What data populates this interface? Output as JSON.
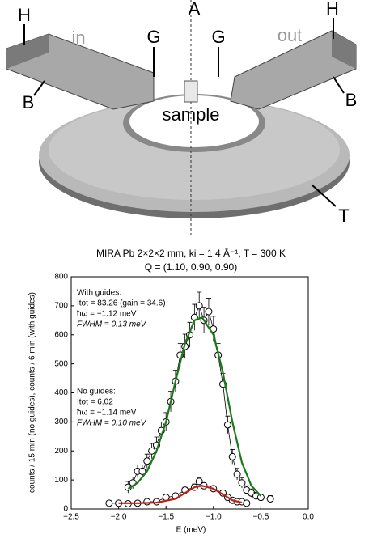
{
  "photo_labels": [
    "A",
    "H",
    "in",
    "G",
    "G",
    "out",
    "H",
    "B",
    "B",
    "sample",
    "T"
  ],
  "chart_data": {
    "type": "scatter",
    "title": "MIRA Pb 2×2×2 mm, ki = 1.4 Å⁻¹, T = 300 K",
    "subtitle": "Q = (1.10, 0.90, 0.90)",
    "x_label": "E (meV)",
    "y_label": "counts / 15 min (no guides), counts / 6 min (with guides)",
    "annotations": [
      "With guides:",
      "Itot = 83.26 (gain = 34.6)",
      "ħω = −1.12 meV",
      "FWHM = 0.13 meV",
      "No guides:",
      "Itot = 6.02",
      "ħω = −1.14 meV",
      "FWHM = 0.10 meV"
    ],
    "xlim": [
      -2.5,
      0
    ],
    "ylim": [
      0,
      800
    ],
    "xticks": [
      {
        "value": -2.5,
        "label": "−2.5"
      },
      {
        "value": -2.0,
        "label": "−2.0"
      },
      {
        "value": -1.5,
        "label": "−1.5"
      },
      {
        "value": -1.0,
        "label": "−1.0"
      },
      {
        "value": -0.5,
        "label": "−0.5"
      },
      {
        "value": 0,
        "label": "0.0"
      }
    ],
    "yticks": [
      0,
      100,
      200,
      300,
      400,
      500,
      600,
      700,
      800
    ],
    "grid": false,
    "series": [
      {
        "mode": "markers+line",
        "color": "#000000",
        "x": [
          -1.9,
          -1.85,
          -1.8,
          -1.75,
          -1.7,
          -1.65,
          -1.6,
          -1.55,
          -1.5,
          -1.45,
          -1.4,
          -1.35,
          -1.3,
          -1.25,
          -1.2,
          -1.15,
          -1.1,
          -1.05,
          -1.0,
          -0.95,
          -0.9,
          -0.85,
          -0.8,
          -0.75,
          -0.7,
          -0.65,
          -0.6,
          -0.55,
          -0.5,
          -0.4
        ],
        "values": [
          75,
          90,
          130,
          130,
          165,
          200,
          220,
          270,
          300,
          370,
          440,
          530,
          560,
          600,
          660,
          700,
          650,
          680,
          620,
          530,
          430,
          290,
          180,
          120,
          90,
          65,
          55,
          45,
          40,
          35
        ],
        "errors": [
          20,
          20,
          22,
          22,
          24,
          26,
          28,
          30,
          32,
          35,
          38,
          40,
          42,
          43,
          45,
          47,
          45,
          46,
          44,
          40,
          37,
          30,
          25,
          20,
          18,
          15,
          14,
          12,
          12,
          11
        ]
      },
      {
        "mode": "line",
        "color": "#1a7a1a",
        "x": [
          -1.9,
          -1.8,
          -1.7,
          -1.6,
          -1.5,
          -1.4,
          -1.3,
          -1.2,
          -1.12,
          -1.0,
          -0.9,
          -0.8,
          -0.7,
          -0.6,
          -0.5
        ],
        "values": [
          70,
          90,
          130,
          200,
          300,
          440,
          570,
          650,
          660,
          600,
          470,
          300,
          160,
          80,
          45
        ]
      },
      {
        "mode": "markers+line",
        "color": "#000000",
        "x": [
          -2.1,
          -2.0,
          -1.9,
          -1.8,
          -1.7,
          -1.6,
          -1.5,
          -1.4,
          -1.3,
          -1.2,
          -1.15,
          -1.1,
          -1.0,
          -0.9,
          -0.85,
          -0.8,
          -0.75,
          -0.7,
          -0.65
        ],
        "values": [
          20,
          20,
          18,
          20,
          25,
          25,
          40,
          45,
          65,
          75,
          95,
          80,
          70,
          55,
          40,
          30,
          25,
          25,
          20
        ],
        "errors": [
          6,
          6,
          6,
          6,
          7,
          7,
          8,
          9,
          10,
          11,
          12,
          11,
          10,
          9,
          8,
          7,
          7,
          7,
          6
        ]
      },
      {
        "mode": "line",
        "color": "#c0201a",
        "x": [
          -2.0,
          -1.8,
          -1.6,
          -1.4,
          -1.3,
          -1.2,
          -1.12,
          -1.0,
          -0.9,
          -0.8,
          -0.7
        ],
        "values": [
          20,
          20,
          22,
          35,
          55,
          75,
          80,
          70,
          50,
          30,
          22
        ]
      }
    ]
  }
}
